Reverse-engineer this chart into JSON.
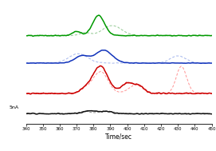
{
  "x_min": 340,
  "x_max": 450,
  "xlabel": "Time/sec",
  "scale_label": "5nA",
  "xticks": [
    340,
    350,
    360,
    370,
    380,
    390,
    400,
    410,
    420,
    430,
    440,
    450
  ],
  "colors": {
    "green_solid": "#009900",
    "green_dashed": "#99cc99",
    "blue_solid": "#1133bb",
    "blue_dashed": "#aabbee",
    "red_solid": "#cc0000",
    "red_dashed": "#ff9999",
    "black_solid": "#111111",
    "black_dashed": "#999999"
  },
  "offsets": {
    "green": 1.1,
    "blue": 0.72,
    "red": 0.3,
    "black": 0.02
  },
  "scale_bar_nA": 0.15,
  "ylim": [
    -0.12,
    1.55
  ],
  "figsize": [
    2.71,
    1.89
  ],
  "dpi": 100
}
